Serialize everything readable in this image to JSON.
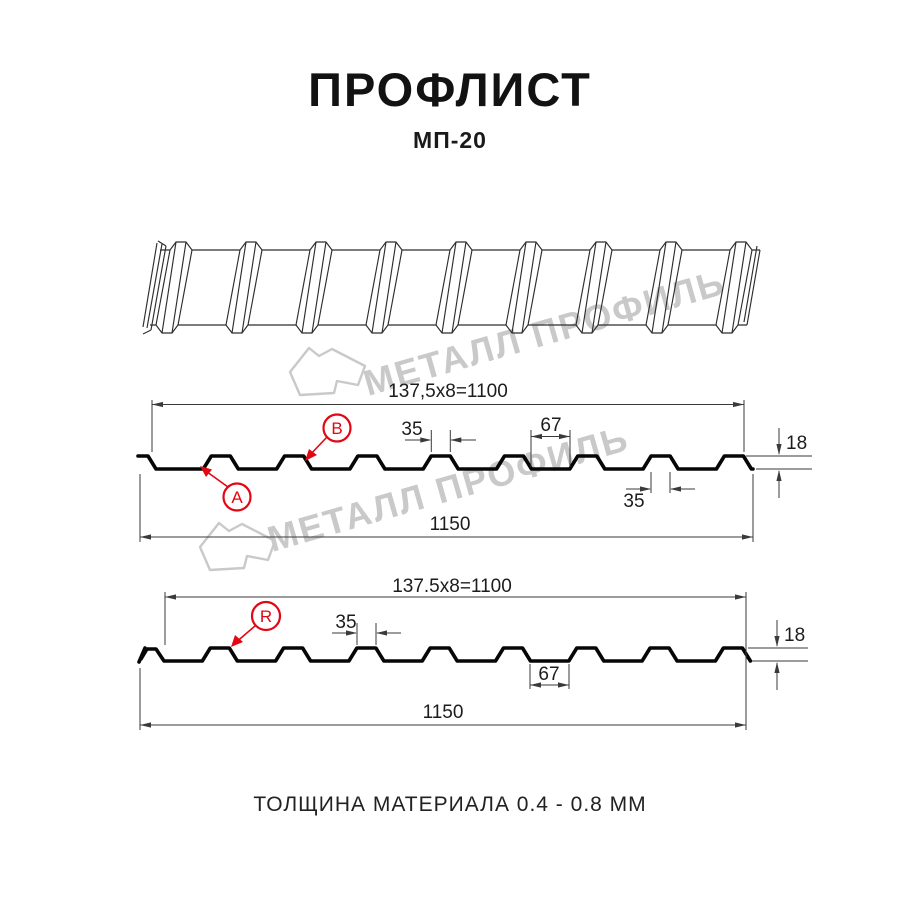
{
  "header": {
    "title": "ПРОФЛИСТ",
    "subtitle": "МП-20"
  },
  "footer": {
    "text": "ТОЛЩИНА МАТЕРИАЛА 0.4 - 0.8 ММ"
  },
  "watermark": {
    "brand": "МЕТАЛЛ ПРОФИЛЬ"
  },
  "colors": {
    "red": "#e30613",
    "line": "#3a3a3a",
    "profile": "#060606",
    "watermark": "#c9c9c9"
  },
  "diagram_top": {
    "module_label": "137,5x8=1100",
    "overall_label": "1150",
    "crest_top_label": "35",
    "valley_label": "67",
    "crest_bottom_label": "35",
    "height_label": "18",
    "marker_a": "A",
    "marker_b": "B"
  },
  "diagram_bottom": {
    "module_label": "137.5x8=1100",
    "overall_label": "1150",
    "crest_top_label": "35",
    "valley_label": "67",
    "height_label": "18",
    "marker_r": "R"
  }
}
